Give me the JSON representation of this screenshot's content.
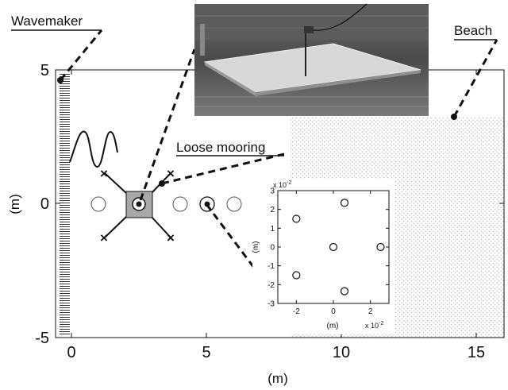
{
  "labels": {
    "wavemaker": "Wavemaker",
    "beach": "Beach",
    "loose_mooring": "Loose mooring"
  },
  "main_axes": {
    "xlabel": "(m)",
    "ylabel": "(m)",
    "x_ticks": [
      "0",
      "5",
      "10",
      "15"
    ],
    "y_ticks": [
      "5",
      "0",
      "-5"
    ],
    "xlim": [
      -0.5,
      16
    ],
    "ylim": [
      -5,
      5
    ]
  },
  "inset_axes": {
    "xlabel": "(m)",
    "ylabel": "(m)",
    "x_ticks": [
      "-2",
      "0",
      "2"
    ],
    "y_ticks": [
      "3",
      "2",
      "1",
      "0",
      "-1",
      "-2",
      "-3"
    ],
    "x_exponent_base": "x 10",
    "x_exponent_power": "-2",
    "y_exponent_base": "x 10",
    "y_exponent_power": "-2"
  },
  "chart_data": {
    "type": "scatter",
    "xlabel": "(m)",
    "ylabel": "(m)",
    "x_scale": 0.01,
    "y_scale": 0.01,
    "xlim": [
      -3,
      3
    ],
    "ylim": [
      -3,
      3
    ],
    "points": [
      {
        "x": -2.0,
        "y": 1.5
      },
      {
        "x": 0.6,
        "y": 2.35
      },
      {
        "x": -2.0,
        "y": -1.5
      },
      {
        "x": 0.6,
        "y": -2.35
      },
      {
        "x": 0.0,
        "y": 0.0
      },
      {
        "x": 2.55,
        "y": 0.0
      }
    ]
  },
  "colors": {
    "axis": "#111111",
    "plate": "#aaaaaa",
    "beach_dots": "#999999"
  }
}
